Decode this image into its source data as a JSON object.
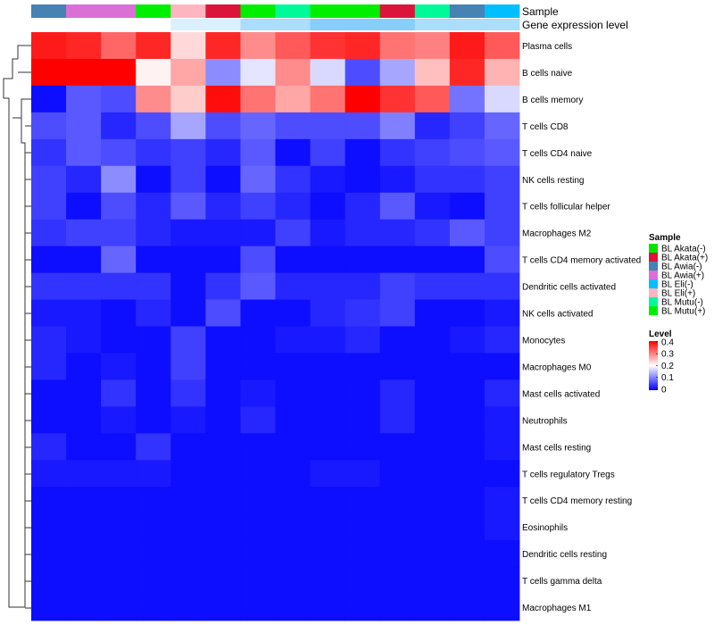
{
  "chart_data": {
    "type": "heatmap",
    "row_labels": [
      "Plasma cells",
      "B cells naive",
      "B cells memory",
      "T cells CD8",
      "T cells CD4 naive",
      "NK cells resting",
      "T cells follicular helper",
      "Macrophages M2",
      "T cells CD4 memory activated",
      "Dendritic cells activated",
      "NK cells activated",
      "Monocytes",
      "Macrophages M0",
      "Mast cells activated",
      "Neutrophils",
      "Mast cells resting",
      "T cells regulatory  Tregs",
      "T cells CD4 memory resting",
      "Eosinophils",
      "Dendritic cells resting",
      "T cells gamma delta",
      "Macrophages M1"
    ],
    "column_samples": [
      "BL Awia(-)",
      "BL Awia(+)",
      "BL Awia(+)",
      "BL Mutu(+)",
      "BL Eli(+)",
      "BL Akata(+)",
      "BL Mutu(+)",
      "BL Mutu(-)",
      "BL Mutu(+)",
      "BL Mutu(+)",
      "BL Akata(+)",
      "BL Mutu(-)",
      "BL Awia(-)",
      "BL Eli(-)"
    ],
    "column_expression": [
      0.0,
      0.0,
      0.0,
      0.0,
      0.3,
      0.3,
      0.7,
      0.7,
      1.0,
      1.0,
      1.0,
      0.7,
      0.7,
      0.7
    ],
    "values": [
      [
        0.38,
        0.37,
        0.32,
        0.37,
        0.23,
        0.37,
        0.29,
        0.33,
        0.36,
        0.37,
        0.31,
        0.3,
        0.38,
        0.33
      ],
      [
        0.4,
        0.4,
        0.4,
        0.21,
        0.27,
        0.11,
        0.18,
        0.29,
        0.17,
        0.06,
        0.13,
        0.25,
        0.37,
        0.26
      ],
      [
        0.01,
        0.07,
        0.06,
        0.29,
        0.24,
        0.39,
        0.31,
        0.27,
        0.31,
        0.4,
        0.36,
        0.33,
        0.09,
        0.17
      ],
      [
        0.06,
        0.07,
        0.03,
        0.06,
        0.13,
        0.06,
        0.08,
        0.06,
        0.06,
        0.06,
        0.1,
        0.03,
        0.05,
        0.08
      ],
      [
        0.04,
        0.07,
        0.06,
        0.04,
        0.05,
        0.03,
        0.07,
        0.01,
        0.05,
        0.01,
        0.04,
        0.05,
        0.06,
        0.07
      ],
      [
        0.05,
        0.03,
        0.11,
        0.01,
        0.05,
        0.01,
        0.08,
        0.04,
        0.02,
        0.01,
        0.02,
        0.04,
        0.04,
        0.05
      ],
      [
        0.05,
        0.01,
        0.06,
        0.03,
        0.07,
        0.03,
        0.05,
        0.03,
        0.01,
        0.03,
        0.07,
        0.02,
        0.01,
        0.05
      ],
      [
        0.04,
        0.05,
        0.05,
        0.03,
        0.02,
        0.02,
        0.02,
        0.05,
        0.02,
        0.03,
        0.03,
        0.04,
        0.07,
        0.05
      ],
      [
        0.01,
        0.01,
        0.08,
        0.01,
        0.01,
        0.01,
        0.06,
        0.01,
        0.01,
        0.01,
        0.01,
        0.01,
        0.01,
        0.06
      ],
      [
        0.04,
        0.04,
        0.04,
        0.04,
        0.01,
        0.04,
        0.07,
        0.03,
        0.03,
        0.03,
        0.05,
        0.04,
        0.04,
        0.04
      ],
      [
        0.02,
        0.02,
        0.01,
        0.03,
        0.01,
        0.06,
        0.01,
        0.01,
        0.03,
        0.04,
        0.05,
        0.01,
        0.01,
        0.02
      ],
      [
        0.03,
        0.02,
        0.01,
        0.01,
        0.05,
        0.01,
        0.01,
        0.02,
        0.02,
        0.03,
        0.01,
        0.01,
        0.02,
        0.03
      ],
      [
        0.03,
        0.01,
        0.02,
        0.01,
        0.05,
        0.01,
        0.01,
        0.01,
        0.01,
        0.01,
        0.01,
        0.01,
        0.01,
        0.01
      ],
      [
        0.01,
        0.01,
        0.04,
        0.01,
        0.04,
        0.01,
        0.02,
        0.01,
        0.01,
        0.01,
        0.03,
        0.01,
        0.01,
        0.03
      ],
      [
        0.01,
        0.01,
        0.02,
        0.01,
        0.02,
        0.01,
        0.03,
        0.01,
        0.01,
        0.01,
        0.03,
        0.01,
        0.01,
        0.02
      ],
      [
        0.03,
        0.01,
        0.01,
        0.04,
        0.01,
        0.01,
        0.01,
        0.01,
        0.01,
        0.01,
        0.01,
        0.01,
        0.01,
        0.02
      ],
      [
        0.02,
        0.02,
        0.02,
        0.02,
        0.01,
        0.01,
        0.01,
        0.01,
        0.02,
        0.02,
        0.01,
        0.01,
        0.01,
        0.01
      ],
      [
        0.01,
        0.01,
        0.01,
        0.01,
        0.01,
        0.01,
        0.01,
        0.01,
        0.01,
        0.01,
        0.01,
        0.01,
        0.01,
        0.02
      ],
      [
        0.01,
        0.01,
        0.01,
        0.01,
        0.01,
        0.01,
        0.01,
        0.01,
        0.01,
        0.01,
        0.01,
        0.01,
        0.01,
        0.02
      ],
      [
        0.01,
        0.01,
        0.01,
        0.01,
        0.01,
        0.01,
        0.01,
        0.01,
        0.01,
        0.01,
        0.01,
        0.01,
        0.01,
        0.01
      ],
      [
        0.01,
        0.01,
        0.01,
        0.01,
        0.01,
        0.01,
        0.01,
        0.01,
        0.01,
        0.01,
        0.01,
        0.01,
        0.01,
        0.01
      ],
      [
        0.01,
        0.01,
        0.01,
        0.01,
        0.01,
        0.01,
        0.01,
        0.01,
        0.01,
        0.01,
        0.01,
        0.01,
        0.01,
        0.01
      ]
    ],
    "color_scale": {
      "min": 0,
      "max": 0.4,
      "stops": [
        {
          "value": 0,
          "color": "#0000ff"
        },
        {
          "value": 0.2,
          "color": "#ffffff"
        },
        {
          "value": 0.4,
          "color": "#ff0000"
        }
      ]
    },
    "expression_scale": {
      "low": "#ffffff",
      "high": "#87cefa"
    },
    "annotation_titles": {
      "sample": "Sample",
      "expression": "Gene expression level"
    },
    "legend": {
      "position": "right",
      "sample_title": "Sample",
      "samples": [
        {
          "label": "BL Akata(-)",
          "color": "#00e400"
        },
        {
          "label": "BL Akata(+)",
          "color": "#dc143c"
        },
        {
          "label": "BL Awia(-)",
          "color": "#4682b4"
        },
        {
          "label": "BL Awia(+)",
          "color": "#da70d6"
        },
        {
          "label": "BL Eli(-)",
          "color": "#00bfff"
        },
        {
          "label": "BL Eli(+)",
          "color": "#ffb6c1"
        },
        {
          "label": "BL Mutu(-)",
          "color": "#00fa9a"
        },
        {
          "label": "BL Mutu(+)",
          "color": "#00ee00"
        }
      ],
      "level_title": "Level",
      "level_ticks": [
        "0.4",
        "0.3",
        "0.2",
        "0.1",
        "0"
      ]
    }
  }
}
